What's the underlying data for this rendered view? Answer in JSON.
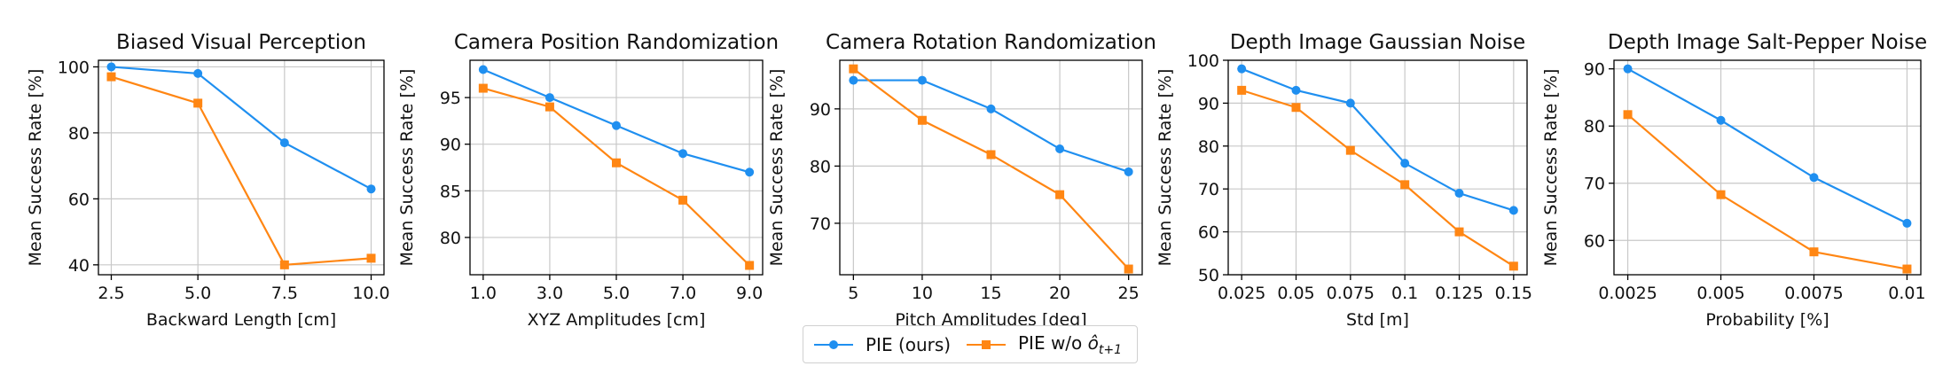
{
  "colors": {
    "series1": "#1f8ff0",
    "series2": "#ff8613",
    "grid": "#c8c8c8",
    "axis": "#000000",
    "text": "#111111"
  },
  "legend": {
    "series1_label": "PIE (ours)",
    "series2_prefix": "PIE w/o ",
    "series2_symbol": "ô",
    "series2_subscript": "t+1"
  },
  "chart_data": [
    {
      "type": "line",
      "title": "Biased Visual Perception",
      "xlabel": "Backward Length [cm]",
      "ylabel": "Mean Success Rate [%]",
      "categories": [
        "2.5",
        "5.0",
        "7.5",
        "10.0"
      ],
      "xlim": [
        0,
        3
      ],
      "ylim": [
        37,
        102
      ],
      "yticks": [
        40,
        60,
        80,
        100
      ],
      "series": [
        {
          "name": "PIE (ours)",
          "values": [
            100,
            98,
            77,
            63
          ]
        },
        {
          "name": "PIE w/o ô_{t+1}",
          "values": [
            97,
            89,
            40,
            42
          ]
        }
      ]
    },
    {
      "type": "line",
      "title": "Camera Position Randomization",
      "xlabel": "XYZ Amplitudes [cm]",
      "ylabel": "Mean Success Rate [%]",
      "categories": [
        "1.0",
        "3.0",
        "5.0",
        "7.0",
        "9.0"
      ],
      "xlim": [
        0,
        4
      ],
      "ylim": [
        76,
        99
      ],
      "yticks": [
        80,
        85,
        90,
        95
      ],
      "series": [
        {
          "name": "PIE (ours)",
          "values": [
            98,
            95,
            92,
            89,
            87
          ]
        },
        {
          "name": "PIE w/o ô_{t+1}",
          "values": [
            96,
            94,
            88,
            84,
            77
          ]
        }
      ]
    },
    {
      "type": "line",
      "title": "Camera Rotation Randomization",
      "xlabel": "Pitch Amplitudes [deg]",
      "ylabel": "Mean Success Rate [%]",
      "categories": [
        "5",
        "10",
        "15",
        "20",
        "25"
      ],
      "xlim": [
        0,
        4
      ],
      "ylim": [
        61,
        98.5
      ],
      "yticks": [
        70,
        80,
        90
      ],
      "series": [
        {
          "name": "PIE (ours)",
          "values": [
            95,
            95,
            90,
            83,
            79
          ]
        },
        {
          "name": "PIE w/o ô_{t+1}",
          "values": [
            97,
            88,
            82,
            75,
            62
          ]
        }
      ]
    },
    {
      "type": "line",
      "title": "Depth Image Gaussian Noise",
      "xlabel": "Std [m]",
      "ylabel": "Mean Success Rate [%]",
      "categories": [
        "0.025",
        "0.05",
        "0.075",
        "0.1",
        "0.125",
        "0.15"
      ],
      "xlim": [
        0,
        5
      ],
      "ylim": [
        50,
        100
      ],
      "yticks": [
        50,
        60,
        70,
        80,
        90,
        100
      ],
      "series": [
        {
          "name": "PIE (ours)",
          "values": [
            98,
            93,
            90,
            76,
            69,
            65
          ]
        },
        {
          "name": "PIE w/o ô_{t+1}",
          "values": [
            93,
            89,
            79,
            71,
            60,
            52
          ]
        }
      ]
    },
    {
      "type": "line",
      "title": "Depth Image Salt-Pepper Noise",
      "xlabel": "Probability [%]",
      "ylabel": "Mean Success Rate [%]",
      "categories": [
        "0.0025",
        "0.005",
        "0.0075",
        "0.01"
      ],
      "xlim": [
        0,
        3
      ],
      "ylim": [
        54,
        91.5
      ],
      "yticks": [
        60,
        70,
        80,
        90
      ],
      "series": [
        {
          "name": "PIE (ours)",
          "values": [
            90,
            81,
            71,
            63
          ]
        },
        {
          "name": "PIE w/o ô_{t+1}",
          "values": [
            82,
            68,
            58,
            55
          ]
        }
      ]
    }
  ]
}
